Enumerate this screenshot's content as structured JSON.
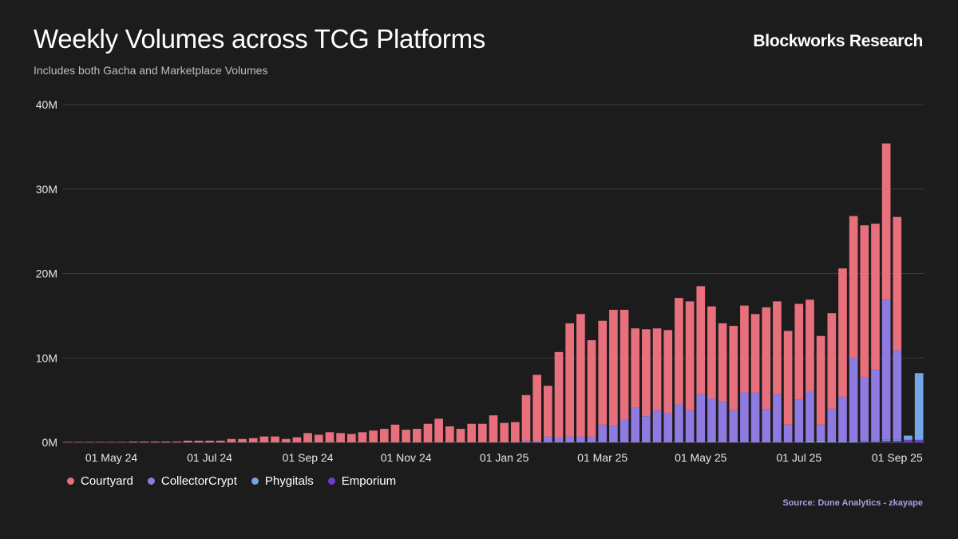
{
  "header": {
    "title": "Weekly Volumes across TCG Platforms",
    "subtitle": "Includes both Gacha and Marketplace Volumes",
    "brand": "Blockworks Research"
  },
  "footer": {
    "source": "Source: Dune Analytics - zkayape"
  },
  "colors": {
    "background": "#1c1c1c",
    "Courtyard": "#e8707d",
    "CollectorCrypt": "#8e7ae0",
    "Phygitals": "#74a6e6",
    "Emporium": "#6a3fd0",
    "grid": "#3a3a3a"
  },
  "chart_data": {
    "type": "bar",
    "stacked": true,
    "title": "Weekly Volumes across TCG Platforms",
    "xlabel": "",
    "ylabel": "",
    "ylim": [
      0,
      40000000
    ],
    "yticks": [
      0,
      10000000,
      20000000,
      30000000,
      40000000
    ],
    "ytick_labels": [
      "0M",
      "10M",
      "20M",
      "30M",
      "40M"
    ],
    "xtick_labels": [
      "01 May 24",
      "01 Jul 24",
      "01 Sep 24",
      "01 Nov 24",
      "01 Jan 25",
      "01 Mar 25",
      "01 May 25",
      "01 Jul 25",
      "01 Sep 25"
    ],
    "xtick_indices": [
      4,
      13,
      22,
      31,
      40,
      49,
      58,
      67,
      76
    ],
    "grid": true,
    "legend_position": "bottom-left",
    "series": [
      {
        "name": "Emporium",
        "values": [
          0,
          0,
          0,
          0,
          0,
          0,
          0,
          0,
          0,
          0,
          0,
          0,
          0,
          0,
          0,
          0,
          0,
          0,
          0,
          0,
          0,
          0,
          0,
          0,
          0,
          0,
          0,
          0,
          0,
          0,
          0,
          0,
          0,
          0,
          0,
          0,
          0,
          0,
          0,
          0,
          0,
          0,
          0,
          0,
          0,
          0,
          0,
          0,
          0,
          0,
          0,
          0,
          0,
          0,
          0,
          0,
          0,
          0,
          0,
          0,
          0,
          0,
          0,
          0,
          0,
          0,
          0,
          0,
          0,
          0,
          0,
          0,
          0,
          100000,
          100000,
          200000,
          200000,
          300000,
          300000
        ]
      },
      {
        "name": "Phygitals",
        "values": [
          0,
          0,
          0,
          0,
          0,
          0,
          0,
          0,
          0,
          0,
          0,
          0,
          0,
          0,
          0,
          0,
          0,
          0,
          0,
          0,
          0,
          0,
          0,
          0,
          0,
          0,
          0,
          0,
          0,
          0,
          0,
          0,
          0,
          0,
          0,
          0,
          0,
          0,
          0,
          0,
          0,
          0,
          0,
          0,
          0,
          0,
          0,
          0,
          0,
          0,
          0,
          0,
          0,
          0,
          0,
          0,
          0,
          0,
          0,
          0,
          0,
          0,
          0,
          0,
          0,
          0,
          0,
          0,
          200000,
          200000,
          100000,
          100000,
          100000,
          100000,
          100000,
          100000,
          100000,
          500000,
          7900000
        ]
      },
      {
        "name": "CollectorCrypt",
        "values": [
          0,
          0,
          0,
          0,
          0,
          0,
          0,
          0,
          0,
          0,
          0,
          0,
          0,
          0,
          0,
          0,
          0,
          0,
          0,
          0,
          0,
          0,
          0,
          0,
          0,
          0,
          0,
          0,
          0,
          0,
          0,
          0,
          0,
          0,
          0,
          0,
          0,
          0,
          0,
          0,
          0,
          0,
          200000,
          100000,
          700000,
          500000,
          700000,
          700000,
          600000,
          2100000,
          2000000,
          2700000,
          4100000,
          3100000,
          3800000,
          3500000,
          4500000,
          3800000,
          5700000,
          5200000,
          4800000,
          3800000,
          5900000,
          5900000,
          3900000,
          5700000,
          2100000,
          5100000,
          5800000,
          1900000,
          3900000,
          5300000,
          9900000,
          7500000,
          8500000,
          16600000,
          10600000
        ]
      },
      {
        "name": "Courtyard",
        "values": [
          50000,
          50000,
          50000,
          50000,
          50000,
          50000,
          100000,
          100000,
          100000,
          100000,
          100000,
          200000,
          200000,
          200000,
          200000,
          400000,
          400000,
          500000,
          700000,
          700000,
          400000,
          600000,
          1100000,
          900000,
          1200000,
          1100000,
          1000000,
          1200000,
          1400000,
          1600000,
          2100000,
          1500000,
          1600000,
          2200000,
          2800000,
          1900000,
          1600000,
          2200000,
          2200000,
          3200000,
          2300000,
          2400000,
          5400000,
          7900000,
          6000000,
          10200000,
          13400000,
          14500000,
          11500000,
          12300000,
          13700000,
          13000000,
          9400000,
          10300000,
          9700000,
          9800000,
          12600000,
          12900000,
          12800000,
          10900000,
          9300000,
          10000000,
          10300000,
          9300000,
          12100000,
          11000000,
          11100000,
          11300000,
          10900000,
          10500000,
          11300000,
          15200000,
          16800000,
          18000000,
          17200000,
          18500000,
          15800000
        ]
      }
    ]
  }
}
